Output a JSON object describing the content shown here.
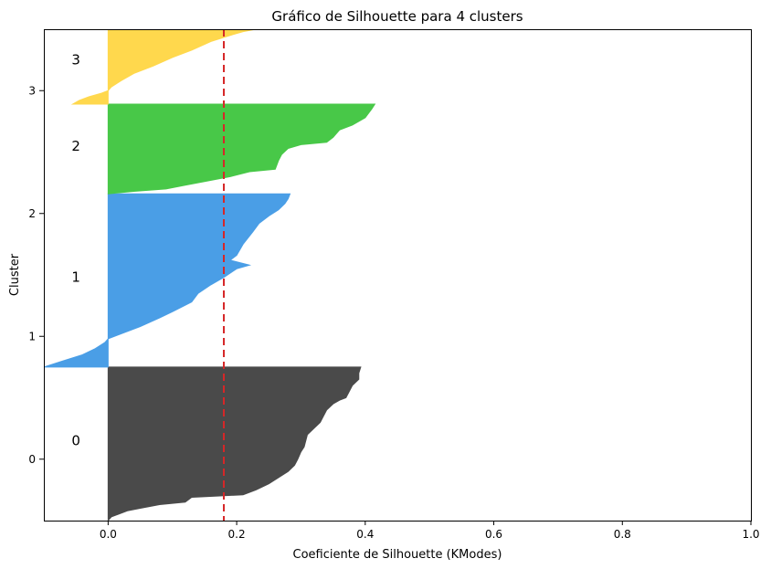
{
  "chart_data": {
    "type": "area",
    "title": "Gráfico de Silhouette para 4 clusters",
    "xlabel": "Coeficiente de Silhouette (KModes)",
    "ylabel": "Cluster",
    "xlim": [
      -0.1,
      1.0
    ],
    "ylim": [
      -0.5,
      3.5
    ],
    "x_ticks": [
      0.0,
      0.2,
      0.4,
      0.6,
      0.8,
      1.0
    ],
    "x_tick_labels": [
      "0.0",
      "0.2",
      "0.4",
      "0.6",
      "0.8",
      "1.0"
    ],
    "y_ticks": [
      0,
      1,
      2,
      3
    ],
    "y_tick_labels": [
      "0",
      "1",
      "2",
      "3"
    ],
    "grid": false,
    "average_silhouette": 0.18,
    "average_line_color": "#d62728",
    "series": [
      {
        "name": "0",
        "color": "#4a4a4a",
        "y_start": -0.5,
        "y_end": 0.75,
        "profile": [
          [
            -0.5,
            0.0
          ],
          [
            -0.47,
            0.005
          ],
          [
            -0.45,
            0.015
          ],
          [
            -0.42,
            0.03
          ],
          [
            -0.4,
            0.05
          ],
          [
            -0.37,
            0.08
          ],
          [
            -0.35,
            0.12
          ],
          [
            -0.31,
            0.13
          ],
          [
            -0.3,
            0.17
          ],
          [
            -0.29,
            0.21
          ],
          [
            -0.25,
            0.23
          ],
          [
            -0.2,
            0.25
          ],
          [
            -0.15,
            0.265
          ],
          [
            -0.1,
            0.28
          ],
          [
            -0.05,
            0.29
          ],
          [
            0.0,
            0.295
          ],
          [
            0.06,
            0.3
          ],
          [
            0.1,
            0.305
          ],
          [
            0.2,
            0.31
          ],
          [
            0.3,
            0.33
          ],
          [
            0.35,
            0.335
          ],
          [
            0.4,
            0.34
          ],
          [
            0.45,
            0.35
          ],
          [
            0.48,
            0.36
          ],
          [
            0.5,
            0.37
          ],
          [
            0.55,
            0.375
          ],
          [
            0.6,
            0.38
          ],
          [
            0.65,
            0.39
          ],
          [
            0.7,
            0.39
          ],
          [
            0.75,
            0.393
          ]
        ]
      },
      {
        "name": "1",
        "color": "#4a9ee6",
        "y_start": 0.75,
        "y_end": 2.16,
        "profile": [
          [
            0.75,
            -0.1
          ],
          [
            0.8,
            -0.07
          ],
          [
            0.85,
            -0.04
          ],
          [
            0.9,
            -0.02
          ],
          [
            0.95,
            -0.005
          ],
          [
            0.98,
            0.0
          ],
          [
            1.02,
            0.02
          ],
          [
            1.08,
            0.05
          ],
          [
            1.15,
            0.08
          ],
          [
            1.2,
            0.1
          ],
          [
            1.28,
            0.13
          ],
          [
            1.35,
            0.14
          ],
          [
            1.42,
            0.16
          ],
          [
            1.48,
            0.18
          ],
          [
            1.55,
            0.2
          ],
          [
            1.58,
            0.22
          ],
          [
            1.62,
            0.19
          ],
          [
            1.66,
            0.2
          ],
          [
            1.75,
            0.21
          ],
          [
            1.85,
            0.225
          ],
          [
            1.92,
            0.235
          ],
          [
            1.98,
            0.25
          ],
          [
            2.03,
            0.265
          ],
          [
            2.08,
            0.275
          ],
          [
            2.12,
            0.28
          ],
          [
            2.16,
            0.283
          ]
        ]
      },
      {
        "name": "2",
        "color": "#48c848",
        "y_start": 2.16,
        "y_end": 2.89,
        "profile": [
          [
            2.16,
            0.0
          ],
          [
            2.18,
            0.04
          ],
          [
            2.2,
            0.09
          ],
          [
            2.23,
            0.12
          ],
          [
            2.26,
            0.15
          ],
          [
            2.3,
            0.19
          ],
          [
            2.34,
            0.22
          ],
          [
            2.36,
            0.26
          ],
          [
            2.43,
            0.265
          ],
          [
            2.48,
            0.27
          ],
          [
            2.53,
            0.28
          ],
          [
            2.56,
            0.3
          ],
          [
            2.58,
            0.34
          ],
          [
            2.62,
            0.35
          ],
          [
            2.68,
            0.36
          ],
          [
            2.72,
            0.38
          ],
          [
            2.78,
            0.4
          ],
          [
            2.85,
            0.41
          ],
          [
            2.89,
            0.415
          ]
        ]
      },
      {
        "name": "3",
        "color": "#ffd84d",
        "y_start": 2.89,
        "y_end": 3.5,
        "profile": [
          [
            2.89,
            -0.055
          ],
          [
            2.92,
            -0.045
          ],
          [
            2.95,
            -0.03
          ],
          [
            2.98,
            -0.01
          ],
          [
            3.0,
            0.0
          ],
          [
            3.03,
            0.005
          ],
          [
            3.08,
            0.02
          ],
          [
            3.14,
            0.04
          ],
          [
            3.2,
            0.07
          ],
          [
            3.27,
            0.1
          ],
          [
            3.33,
            0.13
          ],
          [
            3.4,
            0.16
          ],
          [
            3.45,
            0.19
          ],
          [
            3.48,
            0.21
          ],
          [
            3.5,
            0.23
          ]
        ]
      }
    ],
    "cluster_labels": [
      {
        "text": "0",
        "x": -0.05,
        "y": 0.15
      },
      {
        "text": "1",
        "x": -0.05,
        "y": 1.48
      },
      {
        "text": "2",
        "x": -0.05,
        "y": 2.55
      },
      {
        "text": "3",
        "x": -0.05,
        "y": 3.25
      }
    ]
  }
}
